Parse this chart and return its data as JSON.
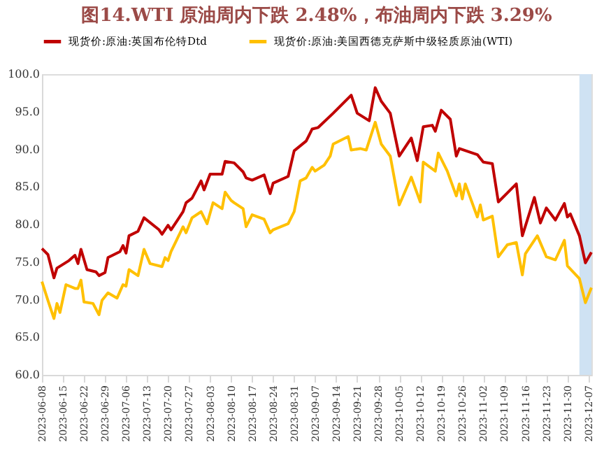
{
  "chart_data": {
    "type": "line",
    "title": "图14.WTI 原油周内下跌 2.48%，布油周内下跌 3.29%",
    "x": [
      "2023-06-08",
      "2023-06-10",
      "2023-06-12",
      "2023-06-13",
      "2023-06-17",
      "2023-06-19",
      "2023-06-20",
      "2023-06-21",
      "2023-06-23",
      "2023-06-26",
      "2023-06-27",
      "2023-06-29",
      "2023-06-30",
      "2023-07-04",
      "2023-07-05",
      "2023-07-06",
      "2023-07-07",
      "2023-07-10",
      "2023-07-12",
      "2023-07-17",
      "2023-07-18",
      "2023-07-20",
      "2023-07-21",
      "2023-07-25",
      "2023-07-26",
      "2023-07-28",
      "2023-07-31",
      "2023-08-01",
      "2023-08-03",
      "2023-08-07",
      "2023-08-08",
      "2023-08-11",
      "2023-08-14",
      "2023-08-15",
      "2023-08-17",
      "2023-08-21",
      "2023-08-23",
      "2023-08-24",
      "2023-08-29",
      "2023-08-31",
      "2023-09-04",
      "2023-09-05",
      "2023-09-06",
      "2023-09-08",
      "2023-09-13",
      "2023-09-19",
      "2023-09-21",
      "2023-09-25",
      "2023-09-27",
      "2023-09-29",
      "2023-10-02",
      "2023-10-05",
      "2023-10-09",
      "2023-10-11",
      "2023-10-13",
      "2023-10-16",
      "2023-10-17",
      "2023-10-19",
      "2023-10-22",
      "2023-10-24",
      "2023-10-25",
      "2023-10-31",
      "2023-11-02",
      "2023-11-05",
      "2023-11-07",
      "2023-11-10",
      "2023-11-13",
      "2023-11-15",
      "2023-11-19",
      "2023-11-21",
      "2023-11-23",
      "2023-11-26",
      "2023-11-29",
      "2023-11-30",
      "2023-12-01",
      "2023-12-04",
      "2023-12-06",
      "2023-12-08"
    ],
    "series": [
      {
        "name": "现货价:原油:英国布伦特Dtd",
        "color": "#c00000",
        "values": [
          76.8,
          76.0,
          72.9,
          74.2,
          75.2,
          75.9,
          74.8,
          76.7,
          74.0,
          73.7,
          73.2,
          73.6,
          75.6,
          76.4,
          77.2,
          76.2,
          78.5,
          79.1,
          80.9,
          79.3,
          78.7,
          79.9,
          79.3,
          81.7,
          82.9,
          83.5,
          85.8,
          84.6,
          86.7,
          86.7,
          88.4,
          88.2,
          87.0,
          86.2,
          85.9,
          86.6,
          84.1,
          85.5,
          86.4,
          89.8,
          91.1,
          91.9,
          92.7,
          92.9,
          94.8,
          97.2,
          94.8,
          93.8,
          98.2,
          96.4,
          94.8,
          89.1,
          91.5,
          88.5,
          93.0,
          93.2,
          92.4,
          95.2,
          94.0,
          89.1,
          90.1,
          89.3,
          88.3,
          88.1,
          83.0,
          84.2,
          85.4,
          78.5,
          83.6,
          80.2,
          82.2,
          80.6,
          82.8,
          81.0,
          81.4,
          78.5,
          74.9,
          76.3
        ]
      },
      {
        "name": "现货价:原油:美国西德克萨斯中级轻质原油(WTI)",
        "color": "#ffc000",
        "x": [
          "2023-06-08",
          "2023-06-10",
          "2023-06-12",
          "2023-06-13",
          "2023-06-14",
          "2023-06-16",
          "2023-06-19",
          "2023-06-20",
          "2023-06-21",
          "2023-06-22",
          "2023-06-25",
          "2023-06-27",
          "2023-06-28",
          "2023-06-30",
          "2023-07-03",
          "2023-07-05",
          "2023-07-06",
          "2023-07-07",
          "2023-07-10",
          "2023-07-12",
          "2023-07-14",
          "2023-07-18",
          "2023-07-19",
          "2023-07-20",
          "2023-07-21",
          "2023-07-25",
          "2023-07-26",
          "2023-07-28",
          "2023-07-31",
          "2023-08-02",
          "2023-08-04",
          "2023-08-07",
          "2023-08-08",
          "2023-08-10",
          "2023-08-11",
          "2023-08-14",
          "2023-08-15",
          "2023-08-17",
          "2023-08-21",
          "2023-08-23",
          "2023-08-24",
          "2023-08-29",
          "2023-08-31",
          "2023-09-02",
          "2023-09-04",
          "2023-09-06",
          "2023-09-07",
          "2023-09-10",
          "2023-09-12",
          "2023-09-13",
          "2023-09-18",
          "2023-09-19",
          "2023-09-22",
          "2023-09-24",
          "2023-09-27",
          "2023-09-29",
          "2023-10-02",
          "2023-10-05",
          "2023-10-09",
          "2023-10-12",
          "2023-10-13",
          "2023-10-17",
          "2023-10-18",
          "2023-10-21",
          "2023-10-24",
          "2023-10-25",
          "2023-10-26",
          "2023-10-27",
          "2023-10-31",
          "2023-11-01",
          "2023-11-02",
          "2023-11-05",
          "2023-11-07",
          "2023-11-10",
          "2023-11-13",
          "2023-11-15",
          "2023-11-16",
          "2023-11-20",
          "2023-11-23",
          "2023-11-26",
          "2023-11-29",
          "2023-11-30",
          "2023-12-04",
          "2023-12-06",
          "2023-12-08"
        ],
        "values": [
          72.4,
          69.9,
          67.5,
          69.5,
          68.3,
          72.0,
          71.5,
          71.5,
          72.6,
          69.7,
          69.5,
          68.0,
          69.9,
          70.9,
          70.2,
          72.0,
          71.8,
          74.0,
          73.2,
          76.7,
          74.8,
          74.4,
          75.6,
          75.2,
          76.4,
          79.7,
          78.9,
          80.9,
          81.7,
          80.1,
          82.9,
          82.1,
          84.3,
          83.2,
          82.9,
          82.1,
          79.7,
          81.3,
          80.7,
          78.9,
          79.3,
          80.1,
          81.7,
          85.8,
          86.2,
          87.6,
          87.1,
          87.9,
          89.1,
          90.7,
          91.7,
          89.9,
          90.1,
          89.9,
          93.6,
          90.7,
          89.1,
          82.6,
          86.3,
          83.0,
          88.3,
          87.1,
          89.5,
          87.1,
          83.8,
          85.4,
          83.4,
          85.4,
          81.0,
          82.6,
          80.6,
          81.1,
          75.7,
          77.3,
          77.6,
          73.3,
          76.1,
          78.5,
          75.7,
          75.3,
          77.9,
          74.5,
          72.8,
          69.6,
          71.6
        ]
      }
    ],
    "xlim": [
      "2023-06-08",
      "2023-12-08"
    ],
    "xticks": [
      "2023-06-08",
      "2023-06-15",
      "2023-06-22",
      "2023-06-29",
      "2023-07-06",
      "2023-07-13",
      "2023-07-20",
      "2023-07-27",
      "2023-08-03",
      "2023-08-10",
      "2023-08-17",
      "2023-08-24",
      "2023-08-31",
      "2023-09-07",
      "2023-09-14",
      "2023-09-21",
      "2023-09-28",
      "2023-10-05",
      "2023-10-12",
      "2023-10-19",
      "2023-10-26",
      "2023-11-02",
      "2023-11-09",
      "2023-11-16",
      "2023-11-23",
      "2023-11-30",
      "2023-12-07"
    ],
    "ylim": [
      60,
      100
    ],
    "yticks": [
      {
        "value": 60,
        "label": "60.0"
      },
      {
        "value": 65,
        "label": "65.0"
      },
      {
        "value": 70,
        "label": "70.0"
      },
      {
        "value": 75,
        "label": "75.0"
      },
      {
        "value": 80,
        "label": "80.0"
      },
      {
        "value": 85,
        "label": "85.0"
      },
      {
        "value": 90,
        "label": "90.0"
      },
      {
        "value": 95,
        "label": "95.0"
      },
      {
        "value": 100,
        "label": "100.0"
      }
    ],
    "bands": [
      {
        "axis": "x",
        "from": "2023-12-04",
        "to": "2023-12-08",
        "color": "#cfe2f3"
      }
    ],
    "grid": false,
    "legend": "top",
    "line_style": "solid",
    "marker": "none"
  }
}
